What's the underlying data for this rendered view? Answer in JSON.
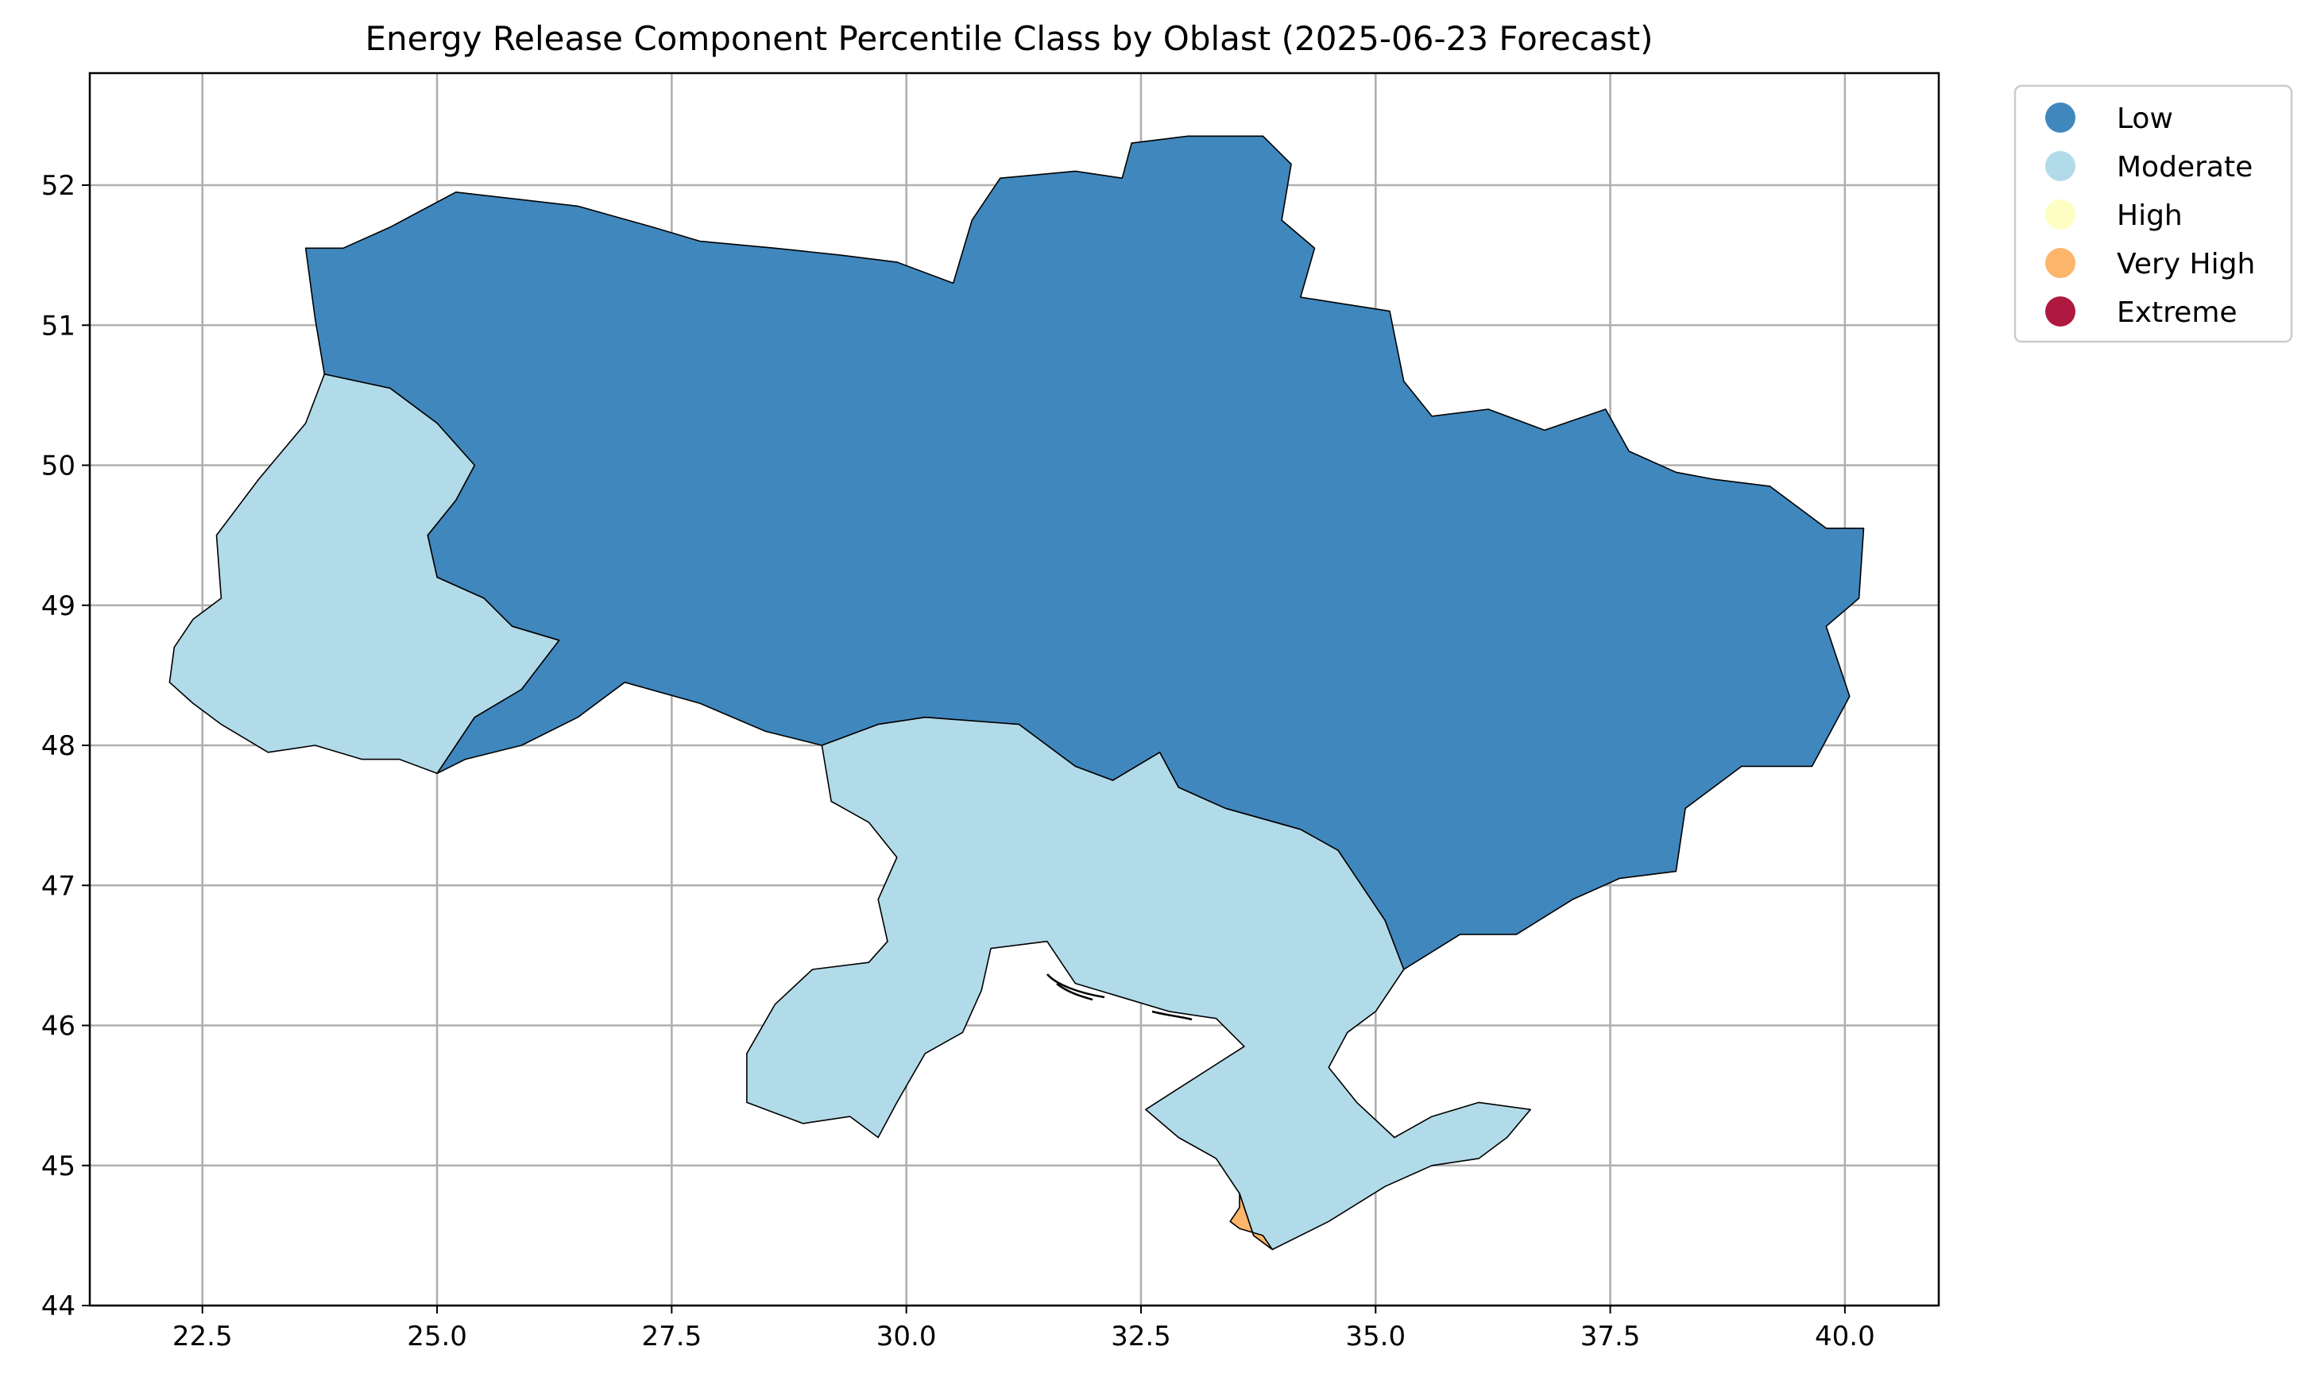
{
  "chart_data": {
    "type": "map",
    "title": "Energy Release Component Percentile Class by Oblast (2025-06-23 Forecast)",
    "xlim": [
      21.3,
      41.0
    ],
    "ylim": [
      44.0,
      52.8
    ],
    "x_ticks": [
      "22.5",
      "25.0",
      "27.5",
      "30.0",
      "32.5",
      "35.0",
      "37.5",
      "40.0"
    ],
    "y_ticks": [
      "44",
      "45",
      "46",
      "47",
      "48",
      "49",
      "50",
      "51",
      "52"
    ],
    "grid": true,
    "legend_position": "outside top-right",
    "classes": [
      {
        "name": "Low",
        "color": "#4087bd"
      },
      {
        "name": "Moderate",
        "color": "#b2dbe9"
      },
      {
        "name": "High",
        "color": "#fefec2"
      },
      {
        "name": "Very High",
        "color": "#fcb56a"
      },
      {
        "name": "Extreme",
        "color": "#af193f"
      }
    ],
    "regions": [
      {
        "class": "Low",
        "outline": [
          [
            24.0,
            51.55
          ],
          [
            24.5,
            51.7
          ],
          [
            25.2,
            51.95
          ],
          [
            26.5,
            51.85
          ],
          [
            27.3,
            51.7
          ],
          [
            27.8,
            51.6
          ],
          [
            28.6,
            51.55
          ],
          [
            29.3,
            51.5
          ],
          [
            29.9,
            51.45
          ],
          [
            30.5,
            51.3
          ],
          [
            30.7,
            51.75
          ],
          [
            31.0,
            52.05
          ],
          [
            31.8,
            52.1
          ],
          [
            32.3,
            52.05
          ],
          [
            32.4,
            52.3
          ],
          [
            33.0,
            52.35
          ],
          [
            33.8,
            52.35
          ],
          [
            34.1,
            52.15
          ],
          [
            34.0,
            51.75
          ],
          [
            34.35,
            51.55
          ],
          [
            34.2,
            51.2
          ],
          [
            35.15,
            51.1
          ],
          [
            35.3,
            50.6
          ],
          [
            35.6,
            50.35
          ],
          [
            36.2,
            50.4
          ],
          [
            36.8,
            50.25
          ],
          [
            37.45,
            50.4
          ],
          [
            37.7,
            50.1
          ],
          [
            38.2,
            49.95
          ],
          [
            38.6,
            49.9
          ],
          [
            39.2,
            49.85
          ],
          [
            39.8,
            49.55
          ],
          [
            40.2,
            49.55
          ],
          [
            40.15,
            49.05
          ],
          [
            39.8,
            48.85
          ],
          [
            40.05,
            48.35
          ],
          [
            39.65,
            47.85
          ],
          [
            38.9,
            47.85
          ],
          [
            38.3,
            47.55
          ],
          [
            38.2,
            47.1
          ],
          [
            37.6,
            47.05
          ],
          [
            37.1,
            46.9
          ],
          [
            36.5,
            46.65
          ],
          [
            35.9,
            46.65
          ],
          [
            35.3,
            46.4
          ],
          [
            35.1,
            46.75
          ],
          [
            34.6,
            47.25
          ],
          [
            34.2,
            47.4
          ],
          [
            33.4,
            47.55
          ],
          [
            32.9,
            47.7
          ],
          [
            32.7,
            47.95
          ],
          [
            32.2,
            47.75
          ],
          [
            31.8,
            47.85
          ],
          [
            31.2,
            48.15
          ],
          [
            30.2,
            48.2
          ],
          [
            29.7,
            48.15
          ],
          [
            29.1,
            48.0
          ],
          [
            28.5,
            48.1
          ],
          [
            27.8,
            48.3
          ],
          [
            27.0,
            48.45
          ],
          [
            26.5,
            48.2
          ],
          [
            25.9,
            48.0
          ],
          [
            25.3,
            47.9
          ],
          [
            25.0,
            47.8
          ],
          [
            25.4,
            48.2
          ],
          [
            25.9,
            48.4
          ],
          [
            26.3,
            48.75
          ],
          [
            25.8,
            48.85
          ],
          [
            25.5,
            49.05
          ],
          [
            25.0,
            49.2
          ],
          [
            24.9,
            49.5
          ],
          [
            25.2,
            49.75
          ],
          [
            25.4,
            50.0
          ],
          [
            25.0,
            50.3
          ],
          [
            24.5,
            50.55
          ],
          [
            23.8,
            50.65
          ],
          [
            23.7,
            51.05
          ],
          [
            23.6,
            51.55
          ],
          [
            24.0,
            51.55
          ]
        ]
      },
      {
        "class": "Moderate",
        "outline": [
          [
            23.8,
            50.65
          ],
          [
            24.5,
            50.55
          ],
          [
            25.0,
            50.3
          ],
          [
            25.4,
            50.0
          ],
          [
            25.2,
            49.75
          ],
          [
            24.9,
            49.5
          ],
          [
            25.0,
            49.2
          ],
          [
            25.5,
            49.05
          ],
          [
            25.8,
            48.85
          ],
          [
            26.3,
            48.75
          ],
          [
            25.9,
            48.4
          ],
          [
            25.4,
            48.2
          ],
          [
            25.0,
            47.8
          ],
          [
            24.6,
            47.9
          ],
          [
            24.2,
            47.9
          ],
          [
            23.7,
            48.0
          ],
          [
            23.2,
            47.95
          ],
          [
            22.7,
            48.15
          ],
          [
            22.4,
            48.3
          ],
          [
            22.15,
            48.45
          ],
          [
            22.2,
            48.7
          ],
          [
            22.4,
            48.9
          ],
          [
            22.7,
            49.05
          ],
          [
            22.65,
            49.5
          ],
          [
            23.1,
            49.9
          ],
          [
            23.6,
            50.3
          ],
          [
            23.8,
            50.65
          ]
        ]
      },
      {
        "class": "Moderate",
        "outline": [
          [
            29.1,
            48.0
          ],
          [
            29.7,
            48.15
          ],
          [
            30.2,
            48.2
          ],
          [
            31.2,
            48.15
          ],
          [
            31.8,
            47.85
          ],
          [
            32.2,
            47.75
          ],
          [
            32.7,
            47.95
          ],
          [
            32.9,
            47.7
          ],
          [
            33.4,
            47.55
          ],
          [
            34.2,
            47.4
          ],
          [
            34.6,
            47.25
          ],
          [
            35.1,
            46.75
          ],
          [
            35.3,
            46.4
          ],
          [
            35.0,
            46.1
          ],
          [
            34.7,
            45.95
          ],
          [
            34.5,
            45.7
          ],
          [
            34.8,
            45.45
          ],
          [
            35.2,
            45.2
          ],
          [
            35.6,
            45.35
          ],
          [
            36.1,
            45.45
          ],
          [
            36.65,
            45.4
          ],
          [
            36.4,
            45.2
          ],
          [
            36.1,
            45.05
          ],
          [
            35.6,
            45.0
          ],
          [
            35.1,
            44.85
          ],
          [
            34.5,
            44.6
          ],
          [
            33.9,
            44.4
          ],
          [
            33.7,
            44.5
          ],
          [
            33.55,
            44.8
          ],
          [
            33.3,
            45.05
          ],
          [
            32.9,
            45.2
          ],
          [
            32.55,
            45.4
          ],
          [
            32.9,
            45.55
          ],
          [
            33.6,
            45.85
          ],
          [
            33.3,
            46.05
          ],
          [
            32.8,
            46.1
          ],
          [
            32.3,
            46.2
          ],
          [
            31.8,
            46.3
          ],
          [
            31.5,
            46.6
          ],
          [
            30.9,
            46.55
          ],
          [
            30.8,
            46.25
          ],
          [
            30.6,
            45.95
          ],
          [
            30.2,
            45.8
          ],
          [
            29.9,
            45.45
          ],
          [
            29.7,
            45.2
          ],
          [
            29.4,
            45.35
          ],
          [
            28.9,
            45.3
          ],
          [
            28.3,
            45.45
          ],
          [
            28.3,
            45.8
          ],
          [
            28.6,
            46.15
          ],
          [
            29.0,
            46.4
          ],
          [
            29.6,
            46.45
          ],
          [
            29.8,
            46.6
          ],
          [
            29.7,
            46.9
          ],
          [
            29.9,
            47.2
          ],
          [
            29.6,
            47.45
          ],
          [
            29.2,
            47.6
          ],
          [
            29.1,
            48.0
          ]
        ]
      },
      {
        "class": "Very High",
        "outline": [
          [
            33.55,
            44.8
          ],
          [
            33.7,
            44.5
          ],
          [
            33.9,
            44.4
          ],
          [
            33.8,
            44.5
          ],
          [
            33.55,
            44.55
          ],
          [
            33.45,
            44.6
          ],
          [
            33.55,
            44.7
          ],
          [
            33.55,
            44.8
          ]
        ]
      }
    ]
  }
}
